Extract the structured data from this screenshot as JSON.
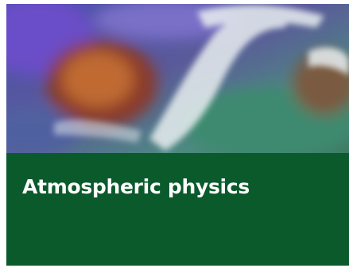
{
  "card": {
    "title": "Atmospheric physics"
  }
}
